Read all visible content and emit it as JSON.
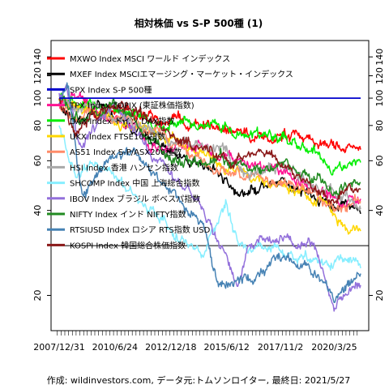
{
  "chart_data": {
    "type": "line",
    "title": "相対株価 vs S-P 500種 (1)",
    "caption": "作成: wildinvestors.com, データ元:トムソンロイター, 最終日: 2021/5/27",
    "y_scale": "log",
    "ylim": [
      15,
      160
    ],
    "y_ticks": [
      20,
      40,
      60,
      80,
      100,
      120,
      140
    ],
    "reference_lines": [
      30
    ],
    "x_range": [
      "2007-12-31",
      "2021-05-27"
    ],
    "x_tick_labels": [
      "2007/12/31",
      "2010/6/24",
      "2012/12/18",
      "2015/6/12",
      "2017/11/2",
      "2020/3/25"
    ],
    "x_tick_dates": [
      "2007-12-31",
      "2010-06-24",
      "2012-12-18",
      "2015-06-12",
      "2017-11-02",
      "2020-03-25"
    ],
    "legend_position": "top-left",
    "grid": false,
    "series": [
      {
        "name": "MXWO Index MSCI ワールド インデックス",
        "color": "#ff0000",
        "points": [
          [
            "2007-12-31",
            98
          ],
          [
            "2009-03-01",
            93
          ],
          [
            "2011-06-01",
            88
          ],
          [
            "2013-06-01",
            83
          ],
          [
            "2015-06-01",
            78
          ],
          [
            "2017-01-01",
            74
          ],
          [
            "2018-06-01",
            72
          ],
          [
            "2019-12-01",
            69
          ],
          [
            "2021-05-27",
            66
          ]
        ]
      },
      {
        "name": "MXEF Index MSCIエマージング・マーケット・インデックス",
        "color": "#000000",
        "points": [
          [
            "2007-12-31",
            98
          ],
          [
            "2008-10-01",
            80
          ],
          [
            "2009-10-01",
            95
          ],
          [
            "2011-01-01",
            82
          ],
          [
            "2012-06-01",
            68
          ],
          [
            "2014-01-01",
            58
          ],
          [
            "2015-06-01",
            52
          ],
          [
            "2016-01-01",
            45
          ],
          [
            "2018-01-01",
            52
          ],
          [
            "2019-06-01",
            44
          ],
          [
            "2020-04-01",
            40
          ],
          [
            "2021-01-01",
            42
          ],
          [
            "2021-05-27",
            38
          ]
        ]
      },
      {
        "name": "SPX Index S-P 500種",
        "color": "#0000cc",
        "points": [
          [
            "2007-12-31",
            100
          ],
          [
            "2021-05-27",
            100
          ]
        ]
      },
      {
        "name": "TPX Index TOPIX (東証株価指数)",
        "color": "#ff1493",
        "points": [
          [
            "2007-12-31",
            95
          ],
          [
            "2008-10-01",
            105
          ],
          [
            "2009-06-01",
            92
          ],
          [
            "2011-06-01",
            78
          ],
          [
            "2012-06-01",
            64
          ],
          [
            "2013-06-01",
            68
          ],
          [
            "2015-06-01",
            62
          ],
          [
            "2017-01-01",
            58
          ],
          [
            "2018-06-01",
            52
          ],
          [
            "2020-01-01",
            45
          ],
          [
            "2021-05-27",
            42
          ]
        ]
      },
      {
        "name": "DAX Index ドイツ DAX指数",
        "color": "#00ee00",
        "points": [
          [
            "2007-12-31",
            100
          ],
          [
            "2008-10-01",
            98
          ],
          [
            "2010-01-01",
            92
          ],
          [
            "2011-06-01",
            90
          ],
          [
            "2012-06-01",
            80
          ],
          [
            "2013-06-01",
            82
          ],
          [
            "2015-01-01",
            80
          ],
          [
            "2016-06-01",
            72
          ],
          [
            "2018-01-01",
            74
          ],
          [
            "2019-06-01",
            64
          ],
          [
            "2020-03-01",
            56
          ],
          [
            "2021-05-27",
            56
          ]
        ]
      },
      {
        "name": "UKX Index FTSE100指数",
        "color": "#ffd700",
        "points": [
          [
            "2007-12-31",
            98
          ],
          [
            "2009-03-01",
            90
          ],
          [
            "2011-06-01",
            80
          ],
          [
            "2013-06-01",
            70
          ],
          [
            "2015-06-01",
            58
          ],
          [
            "2017-01-01",
            52
          ],
          [
            "2018-06-01",
            48
          ],
          [
            "2019-12-01",
            42
          ],
          [
            "2020-06-01",
            36
          ],
          [
            "2021-05-27",
            35
          ]
        ]
      },
      {
        "name": "AS51 Index S-P/ASX200種数",
        "color": "#ff8c69",
        "points": [
          [
            "2007-12-31",
            95
          ],
          [
            "2008-12-01",
            88
          ],
          [
            "2010-06-01",
            88
          ],
          [
            "2011-06-01",
            80
          ],
          [
            "2013-01-01",
            70
          ],
          [
            "2014-06-01",
            60
          ],
          [
            "2016-01-01",
            52
          ],
          [
            "2017-06-01",
            50
          ],
          [
            "2019-01-01",
            48
          ],
          [
            "2020-04-01",
            40
          ],
          [
            "2021-05-27",
            42
          ]
        ]
      },
      {
        "name": "HSI Index 香港 ハンセン指数",
        "color": "#a9a9a9",
        "points": [
          [
            "2007-12-31",
            95
          ],
          [
            "2009-06-01",
            92
          ],
          [
            "2011-06-01",
            80
          ],
          [
            "2013-06-01",
            70
          ],
          [
            "2015-06-01",
            64
          ],
          [
            "2016-06-01",
            54
          ],
          [
            "2018-01-01",
            58
          ],
          [
            "2019-06-01",
            48
          ],
          [
            "2021-05-27",
            42
          ]
        ]
      },
      {
        "name": "SHCOMP Index 中国 上海総合指数",
        "color": "#87eeff",
        "points": [
          [
            "2007-12-31",
            80
          ],
          [
            "2008-10-01",
            52
          ],
          [
            "2009-07-01",
            60
          ],
          [
            "2011-01-01",
            48
          ],
          [
            "2013-01-01",
            34
          ],
          [
            "2014-06-01",
            28
          ],
          [
            "2015-06-01",
            44
          ],
          [
            "2016-01-01",
            30
          ],
          [
            "2018-01-01",
            28
          ],
          [
            "2019-06-01",
            27
          ],
          [
            "2021-05-27",
            26
          ]
        ]
      },
      {
        "name": "IBOV Index ブラジル ボベスパ指数",
        "color": "#9370db",
        "points": [
          [
            "2007-12-31",
            100
          ],
          [
            "2008-05-01",
            110
          ],
          [
            "2009-01-01",
            68
          ],
          [
            "2010-06-01",
            95
          ],
          [
            "2011-06-01",
            74
          ],
          [
            "2013-01-01",
            52
          ],
          [
            "2014-06-01",
            42
          ],
          [
            "2015-12-01",
            22
          ],
          [
            "2016-06-01",
            30
          ],
          [
            "2018-01-01",
            32
          ],
          [
            "2019-06-01",
            30
          ],
          [
            "2020-04-01",
            18
          ],
          [
            "2021-05-27",
            22
          ]
        ]
      },
      {
        "name": "NIFTY Index インド NIFTY指数",
        "color": "#228b22",
        "points": [
          [
            "2007-12-31",
            98
          ],
          [
            "2008-12-01",
            82
          ],
          [
            "2010-06-01",
            95
          ],
          [
            "2011-12-01",
            72
          ],
          [
            "2013-06-01",
            58
          ],
          [
            "2015-03-01",
            62
          ],
          [
            "2016-06-01",
            56
          ],
          [
            "2018-01-01",
            58
          ],
          [
            "2019-06-01",
            52
          ],
          [
            "2020-04-01",
            48
          ],
          [
            "2021-05-27",
            52
          ]
        ]
      },
      {
        "name": "RTSIUSD Index ロシア RTS指数 USD",
        "color": "#4682b4",
        "points": [
          [
            "2007-12-31",
            95
          ],
          [
            "2008-06-01",
            110
          ],
          [
            "2009-01-01",
            44
          ],
          [
            "2010-06-01",
            62
          ],
          [
            "2011-06-01",
            64
          ],
          [
            "2013-01-01",
            48
          ],
          [
            "2014-06-01",
            36
          ],
          [
            "2015-01-01",
            22
          ],
          [
            "2016-01-01",
            22
          ],
          [
            "2018-01-01",
            27
          ],
          [
            "2019-06-01",
            24
          ],
          [
            "2020-04-01",
            19
          ],
          [
            "2021-05-27",
            24
          ]
        ]
      },
      {
        "name": "KOSPI Index 韓国総合株価指数",
        "color": "#8b1a1a",
        "points": [
          [
            "2007-12-31",
            98
          ],
          [
            "2008-10-01",
            75
          ],
          [
            "2009-12-01",
            92
          ],
          [
            "2011-06-01",
            90
          ],
          [
            "2013-01-01",
            72
          ],
          [
            "2015-06-01",
            62
          ],
          [
            "2017-06-01",
            64
          ],
          [
            "2019-06-01",
            48
          ],
          [
            "2020-04-01",
            45
          ],
          [
            "2021-05-27",
            50
          ]
        ]
      }
    ]
  }
}
